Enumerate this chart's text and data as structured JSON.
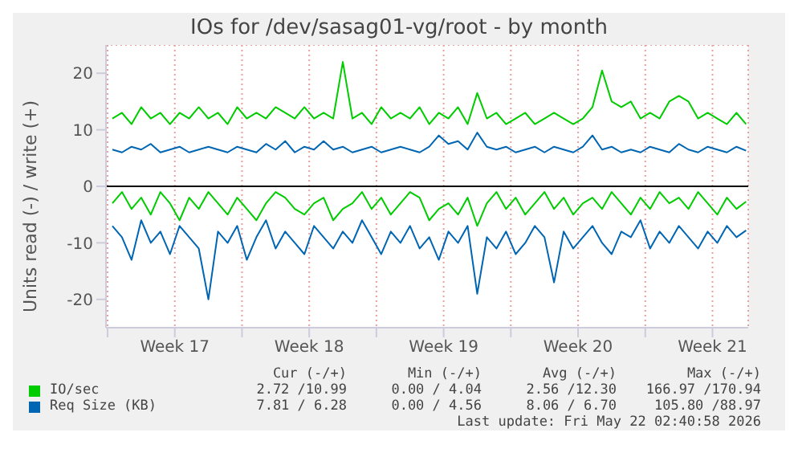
{
  "chart_data": {
    "type": "line",
    "title": "IOs for /dev/sasag01-vg/root - by month",
    "ylabel": "Units read (-) / write (+)",
    "x": [
      "2026-04-19T00:00",
      "2026-04-19T12:00",
      "2026-04-20T00:00",
      "2026-04-20T12:00",
      "2026-04-21T00:00",
      "2026-04-21T12:00",
      "2026-04-22T00:00",
      "2026-04-22T12:00",
      "2026-04-23T00:00",
      "2026-04-23T12:00",
      "2026-04-24T00:00",
      "2026-04-24T12:00",
      "2026-04-25T00:00",
      "2026-04-25T12:00",
      "2026-04-26T00:00",
      "2026-04-26T12:00",
      "2026-04-27T00:00",
      "2026-04-27T12:00",
      "2026-04-28T00:00",
      "2026-04-28T12:00",
      "2026-04-29T00:00",
      "2026-04-29T12:00",
      "2026-04-30T00:00",
      "2026-04-30T12:00",
      "2026-05-01T00:00",
      "2026-05-01T12:00",
      "2026-05-02T00:00",
      "2026-05-02T12:00",
      "2026-05-03T00:00",
      "2026-05-03T12:00",
      "2026-05-04T00:00",
      "2026-05-04T12:00",
      "2026-05-05T00:00",
      "2026-05-05T12:00",
      "2026-05-06T00:00",
      "2026-05-06T12:00",
      "2026-05-07T00:00",
      "2026-05-07T12:00",
      "2026-05-08T00:00",
      "2026-05-08T12:00",
      "2026-05-09T00:00",
      "2026-05-09T12:00",
      "2026-05-10T00:00",
      "2026-05-10T12:00",
      "2026-05-11T00:00",
      "2026-05-11T12:00",
      "2026-05-12T00:00",
      "2026-05-12T12:00",
      "2026-05-13T00:00",
      "2026-05-13T12:00",
      "2026-05-14T00:00",
      "2026-05-14T12:00",
      "2026-05-15T00:00",
      "2026-05-15T12:00",
      "2026-05-16T00:00",
      "2026-05-16T12:00",
      "2026-05-17T00:00",
      "2026-05-17T12:00",
      "2026-05-18T00:00",
      "2026-05-18T12:00",
      "2026-05-19T00:00",
      "2026-05-19T12:00",
      "2026-05-20T00:00",
      "2026-05-20T12:00",
      "2026-05-21T00:00",
      "2026-05-21T12:00",
      "2026-05-22T00:00"
    ],
    "series": [
      {
        "name": "IO/sec",
        "color": "#00cc00",
        "values": [
          12,
          13,
          11,
          14,
          12,
          13,
          11,
          13,
          12,
          14,
          12,
          13,
          11,
          14,
          12,
          13,
          12,
          14,
          13,
          12,
          14,
          12,
          13,
          12,
          22,
          12,
          13,
          11,
          14,
          12,
          13,
          12,
          14,
          11,
          13,
          12,
          14,
          11,
          16.5,
          12,
          13,
          11,
          12,
          13,
          11,
          12,
          13,
          12,
          11,
          12,
          14,
          20.5,
          15,
          14,
          15,
          12,
          13,
          12,
          15,
          16,
          15,
          12,
          13,
          12,
          11,
          13,
          11
        ]
      },
      {
        "name": "Req Size (KB)",
        "color": "#0066b3",
        "values": [
          6.5,
          6,
          7,
          6.5,
          7.5,
          6,
          6.5,
          7,
          6,
          6.5,
          7,
          6.5,
          6,
          7,
          6.5,
          6,
          7.5,
          6.5,
          8,
          6,
          7,
          6.5,
          8,
          6.5,
          7,
          6,
          6.5,
          7,
          6,
          6.5,
          7,
          6.5,
          6,
          7,
          9,
          7.5,
          8,
          6.5,
          9.5,
          7,
          6.5,
          7,
          6,
          6.5,
          7,
          6,
          7,
          6.5,
          6,
          7,
          9,
          6.5,
          7,
          6,
          6.5,
          6,
          7,
          6.5,
          6,
          7.5,
          6.5,
          6,
          7,
          6.5,
          6,
          7,
          6.3
        ]
      },
      {
        "color": "#00cc00",
        "values": [
          -3,
          -1,
          -4,
          -2,
          -5,
          -1,
          -3,
          -6,
          -2,
          -4,
          -1,
          -3,
          -5,
          -2,
          -4,
          -6,
          -3,
          -1,
          -2,
          -4,
          -5,
          -3,
          -2,
          -6,
          -4,
          -3,
          -1,
          -4,
          -2,
          -5,
          -3,
          -1,
          -2,
          -6,
          -4,
          -3,
          -5,
          -2,
          -7,
          -3,
          -1,
          -4,
          -2,
          -5,
          -3,
          -1,
          -4,
          -2,
          -5,
          -3,
          -2,
          -4,
          -1,
          -3,
          -5,
          -2,
          -4,
          -1,
          -3,
          -2,
          -4,
          -1,
          -3,
          -5,
          -2,
          -4,
          -2.7
        ]
      },
      {
        "color": "#0066b3",
        "values": [
          -7,
          -9,
          -13,
          -6,
          -10,
          -8,
          -12,
          -7,
          -9,
          -11,
          -20,
          -8,
          -10,
          -7,
          -13,
          -9,
          -6,
          -11,
          -8,
          -10,
          -12,
          -7,
          -9,
          -11,
          -8,
          -10,
          -6,
          -9,
          -12,
          -8,
          -10,
          -7,
          -11,
          -9,
          -13,
          -8,
          -10,
          -7,
          -19,
          -9,
          -11,
          -8,
          -12,
          -10,
          -7,
          -9,
          -17,
          -8,
          -11,
          -9,
          -7,
          -10,
          -12,
          -8,
          -9,
          -6,
          -11,
          -8,
          -10,
          -7,
          -9,
          -11,
          -8,
          -10,
          -7,
          -9,
          -7.8
        ]
      }
    ],
    "xlim": [
      "2026-04-18T16:00",
      "2026-05-22T02:40"
    ],
    "xticks": [
      {
        "value": "2026-04-18T18:00",
        "label": null
      },
      {
        "value": "2026-04-22T06:00",
        "label": "Week 17"
      },
      {
        "value": "2026-04-25T18:00",
        "label": null
      },
      {
        "value": "2026-04-29T06:00",
        "label": "Week 18"
      },
      {
        "value": "2026-05-02T18:00",
        "label": null
      },
      {
        "value": "2026-05-06T06:00",
        "label": "Week 19"
      },
      {
        "value": "2026-05-09T18:00",
        "label": null
      },
      {
        "value": "2026-05-13T06:00",
        "label": "Week 20"
      },
      {
        "value": "2026-05-16T18:00",
        "label": null
      },
      {
        "value": "2026-05-20T06:00",
        "label": "Week 21"
      }
    ],
    "ylim": [
      -25,
      25
    ],
    "yticks": [
      -20,
      -10,
      0,
      10,
      20
    ],
    "ref_lines": [
      {
        "axis": "y",
        "value": 0,
        "color": "#000000"
      }
    ],
    "grid": true,
    "legend": "bottom",
    "marker": "none",
    "line_style": "solid",
    "annotations": [
      "Cur (-/+)",
      "Min (-/+)",
      "Avg (-/+)",
      "Max (-/+)",
      "2.72 /10.99",
      "0.00 / 4.04",
      "2.56 /12.30",
      "166.97 /170.94",
      "7.81 / 6.28",
      "0.00 / 4.56",
      "8.06 / 6.70",
      "105.80 /88.97",
      "Last update: Fri May 22 02:40:58 2026"
    ]
  }
}
